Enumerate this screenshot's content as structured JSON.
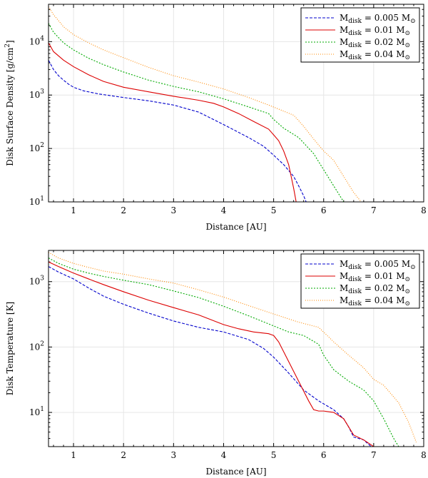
{
  "chart_data": [
    {
      "type": "line",
      "name": "surface-density-chart",
      "xlabel": "Distance [AU]",
      "ylabel": "Disk Surface Density [g/cm2]",
      "ylabel_main": "Disk Surface Density [g/cm",
      "ylabel_sup": "2",
      "ylabel_end": "]",
      "xlim": [
        0.5,
        8
      ],
      "ylim": [
        10,
        50000
      ],
      "yscale": "log",
      "xticks": [
        "1",
        "2",
        "3",
        "4",
        "5",
        "6",
        "7",
        "8"
      ],
      "yticks": [
        {
          "base": "10",
          "exp": "1"
        },
        {
          "base": "10",
          "exp": "2"
        },
        {
          "base": "10",
          "exp": "3"
        },
        {
          "base": "10",
          "exp": "4"
        }
      ],
      "grid": true,
      "legend_position": "top-right",
      "series": [
        {
          "name": "Mdisk = 0.005 Msun",
          "label_main": "M",
          "label_sub": "disk",
          "label_value": " = 0.005 M",
          "label_sym": "⊙",
          "color": "#0000cc",
          "dash": "4,2",
          "x": [
            0.5,
            0.6,
            0.7,
            0.8,
            0.9,
            1.0,
            1.2,
            1.5,
            2.0,
            2.5,
            3.0,
            3.5,
            4.0,
            4.5,
            4.8,
            5.0,
            5.2,
            5.4,
            5.5,
            5.6,
            5.65
          ],
          "y": [
            4500,
            3000,
            2300,
            1900,
            1600,
            1400,
            1200,
            1050,
            900,
            780,
            650,
            480,
            280,
            160,
            110,
            75,
            50,
            30,
            20,
            13,
            10
          ]
        },
        {
          "name": "Mdisk = 0.01 Msun",
          "label_main": "M",
          "label_sub": "disk",
          "label_value": " = 0.01 M",
          "label_sym": "⊙",
          "color": "#dd0000",
          "dash": "",
          "x": [
            0.5,
            0.6,
            0.8,
            1.0,
            1.3,
            1.6,
            2.0,
            2.5,
            3.0,
            3.5,
            3.8,
            4.0,
            4.3,
            4.6,
            4.9,
            5.0,
            5.1,
            5.2,
            5.3,
            5.35,
            5.4,
            5.45
          ],
          "y": [
            9500,
            6500,
            4500,
            3400,
            2400,
            1800,
            1400,
            1150,
            950,
            800,
            700,
            600,
            450,
            320,
            230,
            180,
            140,
            90,
            50,
            30,
            18,
            10
          ]
        },
        {
          "name": "Mdisk = 0.02 Msun",
          "label_main": "M",
          "label_sub": "disk",
          "label_value": " = 0.02 M",
          "label_sym": "⊙",
          "color": "#00aa00",
          "dash": "2,2",
          "x": [
            0.5,
            0.6,
            0.8,
            1.0,
            1.3,
            1.6,
            2.0,
            2.5,
            3.0,
            3.5,
            4.0,
            4.5,
            4.9,
            5.0,
            5.2,
            5.5,
            5.8,
            6.0,
            6.2,
            6.4
          ],
          "y": [
            22000,
            15000,
            9500,
            7000,
            4900,
            3700,
            2700,
            1900,
            1450,
            1150,
            850,
            600,
            450,
            350,
            240,
            160,
            80,
            40,
            20,
            10
          ]
        },
        {
          "name": "Mdisk = 0.04 Msun",
          "label_main": "M",
          "label_sub": "disk",
          "label_value": " = 0.04 M",
          "label_sym": "⊙",
          "color": "#ff8800",
          "dash": "1,2",
          "x": [
            0.5,
            0.6,
            0.8,
            1.0,
            1.3,
            1.6,
            2.0,
            2.5,
            3.0,
            3.5,
            4.0,
            4.5,
            4.9,
            5.2,
            5.4,
            5.6,
            5.8,
            6.0,
            6.2,
            6.4,
            6.6,
            6.75
          ],
          "y": [
            45000,
            32000,
            19000,
            13500,
            9500,
            7000,
            5000,
            3300,
            2300,
            1750,
            1300,
            900,
            650,
            500,
            420,
            260,
            150,
            90,
            60,
            30,
            15,
            10
          ]
        }
      ]
    },
    {
      "type": "line",
      "name": "temperature-chart",
      "xlabel": "Distance [AU]",
      "ylabel": "Disk Temperature [K]",
      "xlim": [
        0.5,
        8
      ],
      "ylim": [
        3,
        3000
      ],
      "yscale": "log",
      "xticks": [
        "1",
        "2",
        "3",
        "4",
        "5",
        "6",
        "7",
        "8"
      ],
      "yticks": [
        {
          "base": "10",
          "exp": "1"
        },
        {
          "base": "10",
          "exp": "2"
        },
        {
          "base": "10",
          "exp": "3"
        }
      ],
      "grid": true,
      "legend_position": "top-right",
      "series": [
        {
          "name": "Mdisk = 0.005 Msun",
          "label_main": "M",
          "label_sub": "disk",
          "label_value": " = 0.005 M",
          "label_sym": "⊙",
          "color": "#0000cc",
          "dash": "4,2",
          "x": [
            0.5,
            0.7,
            1.0,
            1.3,
            1.6,
            2.0,
            2.5,
            3.0,
            3.5,
            4.0,
            4.5,
            4.8,
            5.0,
            5.3,
            5.6,
            5.9,
            6.2,
            6.4,
            6.5,
            6.6,
            6.8,
            6.95,
            7.0
          ],
          "y": [
            1700,
            1400,
            1100,
            800,
            600,
            450,
            330,
            250,
            200,
            170,
            130,
            95,
            70,
            40,
            22,
            15,
            11,
            8,
            6,
            4.2,
            3.8,
            3,
            3
          ]
        },
        {
          "name": "Mdisk = 0.01 Msun",
          "label_main": "M",
          "label_sub": "disk",
          "label_value": " = 0.01 M",
          "label_sym": "⊙",
          "color": "#dd0000",
          "dash": "",
          "x": [
            0.5,
            0.7,
            1.0,
            1.3,
            1.6,
            2.0,
            2.5,
            3.0,
            3.5,
            4.0,
            4.3,
            4.6,
            4.9,
            5.0,
            5.1,
            5.3,
            5.5,
            5.7,
            5.8,
            5.9,
            6.0,
            6.2,
            6.4,
            6.5,
            6.6,
            6.8,
            7.0
          ],
          "y": [
            2000,
            1700,
            1350,
            1100,
            900,
            700,
            520,
            400,
            310,
            220,
            190,
            170,
            160,
            150,
            120,
            60,
            30,
            15,
            11,
            10.5,
            10.5,
            10,
            8,
            6,
            4.5,
            3.8,
            3
          ]
        },
        {
          "name": "Mdisk = 0.02 Msun",
          "label_main": "M",
          "label_sub": "disk",
          "label_value": " = 0.02 M",
          "label_sym": "⊙",
          "color": "#00aa00",
          "dash": "2,2",
          "x": [
            0.5,
            0.7,
            1.0,
            1.3,
            1.6,
            2.0,
            2.5,
            3.0,
            3.5,
            4.0,
            4.5,
            5.0,
            5.3,
            5.6,
            5.9,
            6.0,
            6.2,
            6.5,
            6.8,
            7.0,
            7.2,
            7.4,
            7.5
          ],
          "y": [
            2300,
            1900,
            1550,
            1350,
            1200,
            1050,
            900,
            720,
            570,
            420,
            300,
            210,
            170,
            150,
            110,
            75,
            45,
            30,
            22,
            15,
            8,
            4,
            3
          ]
        },
        {
          "name": "Mdisk = 0.04 Msun",
          "label_main": "M",
          "label_sub": "disk",
          "label_value": " = 0.04 M",
          "label_sym": "⊙",
          "color": "#ff8800",
          "dash": "1,2",
          "x": [
            0.5,
            0.7,
            1.0,
            1.3,
            1.6,
            2.0,
            2.5,
            3.0,
            3.5,
            4.0,
            4.5,
            5.0,
            5.5,
            5.9,
            6.2,
            6.5,
            6.8,
            7.0,
            7.2,
            7.5,
            7.7,
            7.85
          ],
          "y": [
            2800,
            2300,
            1900,
            1650,
            1450,
            1300,
            1100,
            950,
            750,
            580,
            430,
            320,
            240,
            200,
            120,
            75,
            48,
            32,
            26,
            14,
            7,
            3.5
          ]
        }
      ]
    }
  ]
}
